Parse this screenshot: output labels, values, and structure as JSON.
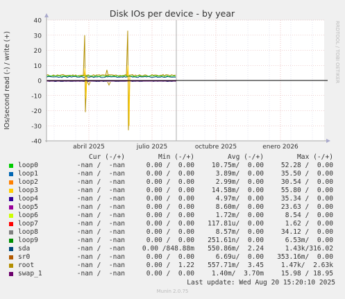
{
  "chart_data": {
    "type": "line",
    "title": "Disk IOs per device - by year",
    "ylabel": "IOs/second read (-) / write (+)",
    "ylim": [
      -40,
      40
    ],
    "yticks": [
      40,
      30,
      20,
      10,
      0,
      -10,
      -20,
      -30,
      -40
    ],
    "xlabels": [
      "abril 2025",
      "julio 2025",
      "octubre 2025",
      "enero 2026"
    ],
    "watermark": "RRDTOOL / TOBI OETIKER",
    "grid": true,
    "series": [
      {
        "name": "loop0",
        "color": "#00cc00"
      },
      {
        "name": "loop1",
        "color": "#0066b3"
      },
      {
        "name": "loop2",
        "color": "#ff8000"
      },
      {
        "name": "loop3",
        "color": "#ffcc00"
      },
      {
        "name": "loop4",
        "color": "#330099"
      },
      {
        "name": "loop5",
        "color": "#990099"
      },
      {
        "name": "loop6",
        "color": "#ccff00"
      },
      {
        "name": "loop7",
        "color": "#ff0000"
      },
      {
        "name": "loop8",
        "color": "#808080"
      },
      {
        "name": "loop9",
        "color": "#008f00"
      },
      {
        "name": "sda",
        "color": "#00487d"
      },
      {
        "name": "sr0",
        "color": "#b35a00"
      },
      {
        "name": "root",
        "color": "#b38f00"
      },
      {
        "name": "swap_1",
        "color": "#6b006b"
      }
    ]
  },
  "legend": {
    "header": {
      "cur": "Cur (-/+)",
      "min": "Min (-/+)",
      "avg": "Avg (-/+)",
      "max": "Max (-/+)"
    },
    "rows": [
      {
        "name": "loop0",
        "cur": "-nan /  -nan",
        "min": "0.00 /  0.00",
        "avg": "10.75m/  0.00",
        "max": "52.28 /  0.00"
      },
      {
        "name": "loop1",
        "cur": "-nan /  -nan",
        "min": "0.00 /  0.00",
        "avg": "3.89m/  0.00",
        "max": "35.50 /  0.00"
      },
      {
        "name": "loop2",
        "cur": "-nan /  -nan",
        "min": "0.00 /  0.00",
        "avg": "2.99m/  0.00",
        "max": "30.54 /  0.00"
      },
      {
        "name": "loop3",
        "cur": "-nan /  -nan",
        "min": "0.00 /  0.00",
        "avg": "14.58m/  0.00",
        "max": "55.80 /  0.00"
      },
      {
        "name": "loop4",
        "cur": "-nan /  -nan",
        "min": "0.00 /  0.00",
        "avg": "4.97m/  0.00",
        "max": "35.34 /  0.00"
      },
      {
        "name": "loop5",
        "cur": "-nan /  -nan",
        "min": "0.00 /  0.00",
        "avg": "8.60m/  0.00",
        "max": "23.63 /  0.00"
      },
      {
        "name": "loop6",
        "cur": "-nan /  -nan",
        "min": "0.00 /  0.00",
        "avg": "1.72m/  0.00",
        "max": "8.54 /  0.00"
      },
      {
        "name": "loop7",
        "cur": "-nan /  -nan",
        "min": "0.00 /  0.00",
        "avg": "117.81u/  0.00",
        "max": "1.62 /  0.00"
      },
      {
        "name": "loop8",
        "cur": "-nan /  -nan",
        "min": "0.00 /  0.00",
        "avg": "8.57m/  0.00",
        "max": "34.12 /  0.00"
      },
      {
        "name": "loop9",
        "cur": "-nan /  -nan",
        "min": "0.00 /  0.00",
        "avg": "251.61n/  0.00",
        "max": "6.53m/  0.00"
      },
      {
        "name": "sda",
        "cur": "-nan /  -nan",
        "min": "0.00 /848.88m",
        "avg": "550.86m/  2.24",
        "max": "1.43k/316.02"
      },
      {
        "name": "sr0",
        "cur": "-nan /  -nan",
        "min": "0.00 /  0.00",
        "avg": "6.69u/  0.00",
        "max": "353.16m/  0.00"
      },
      {
        "name": "root",
        "cur": "-nan /  -nan",
        "min": "0.00 /  1.22",
        "avg": "557.71m/  3.45",
        "max": "1.47k/  2.63k"
      },
      {
        "name": "swap_1",
        "cur": "-nan /  -nan",
        "min": "0.00 /  0.00",
        "avg": "1.40m/  3.70m",
        "max": "15.98 / 18.95"
      }
    ]
  },
  "footer": {
    "last_update": "Last update: Wed Aug 20 15:20:10 2025",
    "munin": "Munin 2.0.75"
  }
}
